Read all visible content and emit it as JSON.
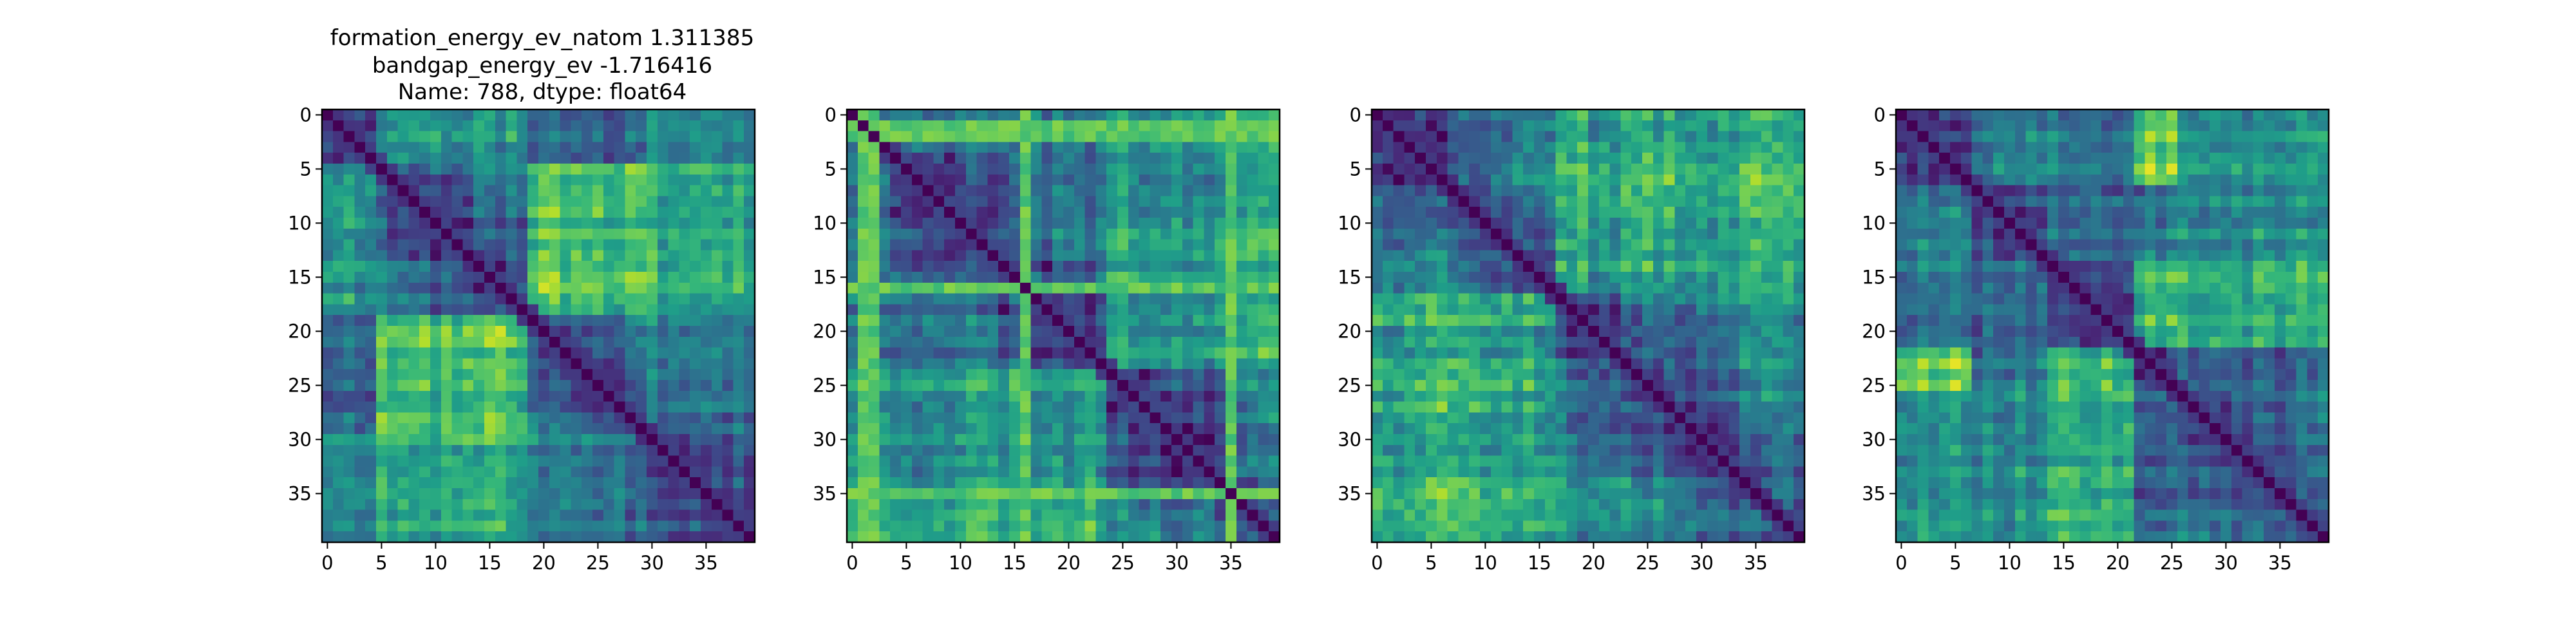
{
  "figure_title": {
    "lines": [
      "formation_energy_ev_natom    1.311385",
      "bandgap_energy_ev           -1.716416",
      "Name: 788, dtype: float64"
    ]
  },
  "colormap": {
    "name": "viridis",
    "stops": [
      "#440154",
      "#482878",
      "#3e4989",
      "#31688e",
      "#26828e",
      "#1f9e89",
      "#35b779",
      "#6ece58",
      "#b5de2b",
      "#fde725"
    ]
  },
  "chart_data": [
    {
      "type": "heatmap",
      "title": "",
      "size": 40,
      "xlim": [
        0,
        39
      ],
      "ylim": [
        39,
        0
      ],
      "xticks": [
        0,
        5,
        10,
        15,
        20,
        25,
        30,
        35
      ],
      "yticks": [
        0,
        5,
        10,
        15,
        20,
        25,
        30,
        35
      ],
      "groups": [
        [
          0,
          4
        ],
        [
          5,
          18
        ],
        [
          19,
          29
        ],
        [
          30,
          39
        ]
      ],
      "group_levels": [
        [
          0.0,
          0.55,
          0.35,
          0.5
        ],
        [
          0.55,
          0.0,
          0.7,
          0.6
        ],
        [
          0.35,
          0.7,
          0.0,
          0.4
        ],
        [
          0.5,
          0.6,
          0.4,
          0.0
        ]
      ],
      "noise_seed": 11,
      "noise_amount": 0.18,
      "diag_value": 0.0,
      "near_diag_value": 0.12
    },
    {
      "type": "heatmap",
      "title": "",
      "size": 40,
      "xlim": [
        0,
        39
      ],
      "ylim": [
        39,
        0
      ],
      "xticks": [
        0,
        5,
        10,
        15,
        20,
        25,
        30,
        35
      ],
      "yticks": [
        0,
        5,
        10,
        15,
        20,
        25,
        30,
        35
      ],
      "groups": [
        [
          0,
          3
        ],
        [
          4,
          23
        ],
        [
          24,
          39
        ]
      ],
      "group_levels": [
        [
          0.85,
          0.45,
          0.6
        ],
        [
          0.45,
          0.0,
          0.55
        ],
        [
          0.6,
          0.55,
          0.0
        ]
      ],
      "noise_seed": 23,
      "noise_amount": 0.2,
      "diag_value": 0.0,
      "near_diag_value": 0.15,
      "stripe_rows": [
        1,
        2,
        16,
        35
      ],
      "stripe_value": 0.82
    },
    {
      "type": "heatmap",
      "title": "",
      "size": 40,
      "xlim": [
        0,
        39
      ],
      "ylim": [
        39,
        0
      ],
      "xticks": [
        0,
        5,
        10,
        15,
        20,
        25,
        30,
        35
      ],
      "yticks": [
        0,
        5,
        10,
        15,
        20,
        25,
        30,
        35
      ],
      "groups": [
        [
          0,
          16
        ],
        [
          17,
          39
        ]
      ],
      "group_levels": [
        [
          0.0,
          0.62
        ],
        [
          0.62,
          0.0
        ]
      ],
      "noise_seed": 37,
      "noise_amount": 0.22,
      "diag_value": 0.0,
      "near_diag_value": 0.12
    },
    {
      "type": "heatmap",
      "title": "",
      "size": 40,
      "xlim": [
        0,
        39
      ],
      "ylim": [
        39,
        0
      ],
      "xticks": [
        0,
        5,
        10,
        15,
        20,
        25,
        30,
        35
      ],
      "yticks": [
        0,
        5,
        10,
        15,
        20,
        25,
        30,
        35
      ],
      "groups": [
        [
          0,
          6
        ],
        [
          7,
          13
        ],
        [
          14,
          21
        ],
        [
          22,
          25
        ],
        [
          26,
          39
        ]
      ],
      "group_levels": [
        [
          0.0,
          0.45,
          0.4,
          0.78,
          0.5
        ],
        [
          0.45,
          0.0,
          0.35,
          0.4,
          0.45
        ],
        [
          0.4,
          0.35,
          0.0,
          0.7,
          0.65
        ],
        [
          0.78,
          0.4,
          0.7,
          0.0,
          0.35
        ],
        [
          0.5,
          0.45,
          0.65,
          0.35,
          0.0
        ]
      ],
      "noise_seed": 53,
      "noise_amount": 0.18,
      "diag_value": 0.0,
      "near_diag_value": 0.12
    }
  ]
}
